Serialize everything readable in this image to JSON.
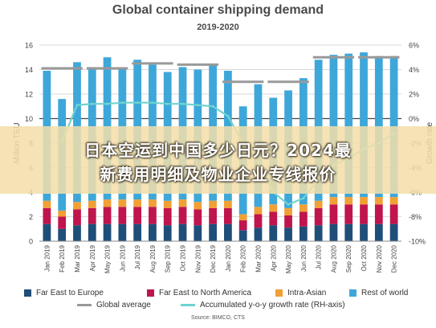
{
  "title": "Global container shipping demand",
  "subtitle": "2019-2020",
  "banner": {
    "line1": "日本空运到中国多少日元？2024最",
    "line2": "新费用明细及物业企业专线报价"
  },
  "source": "Source: BIMCO, CTS",
  "colors": {
    "far_east_europe": "#1f4e79",
    "far_east_north_america": "#c0144c",
    "intra_asian": "#f0a035",
    "rest_of_world": "#3ea7d9",
    "global_average": "#999999",
    "growth_rate": "#6fd3cf"
  },
  "legend": {
    "far_east_europe": "Far East to Europe",
    "far_east_north_america": "Far East to North America",
    "intra_asian": "Intra-Asian",
    "rest_of_world": "Rest of world",
    "global_average": "Global average",
    "growth_rate": "Accumulated y-o-y growth rate (RH-axis)"
  },
  "chart_data": {
    "type": "bar",
    "stacked": true,
    "title": "Global container shipping demand",
    "subtitle": "2019-2020",
    "ylabel": "Million TEU",
    "y2label": "Growth rate",
    "ylim": [
      0,
      16
    ],
    "y2lim": [
      -10,
      6
    ],
    "yticks": [
      0,
      2,
      4,
      6,
      8,
      10,
      12,
      14,
      16
    ],
    "y2ticks": [
      "-10%",
      "-8%",
      "-6%",
      "-4%",
      "-2%",
      "0%",
      "2%",
      "4%",
      "6%"
    ],
    "y2tick_values": [
      -10,
      -8,
      -6,
      -4,
      -2,
      0,
      2,
      4,
      6
    ],
    "grid": true,
    "categories": [
      "Jan 2019",
      "Feb 2019",
      "Mar 2019",
      "Apr 2019",
      "May 2019",
      "Jun 2019",
      "Jul 2019",
      "Aug 2019",
      "Sep 2019",
      "Oct 2019",
      "Nov 2019",
      "Dec 2019",
      "Jan 2020",
      "Feb 2020",
      "Mar 2020",
      "Apr 2020",
      "May 2020",
      "Jun 2020",
      "Jul 2020",
      "Aug 2020",
      "Sep 2020",
      "Oct 2020",
      "Nov 2020",
      "Dec 2020"
    ],
    "series": [
      {
        "name": "Far East to Europe",
        "key": "far_east_europe",
        "values": [
          1.4,
          1.0,
          1.3,
          1.4,
          1.4,
          1.4,
          1.4,
          1.4,
          1.3,
          1.4,
          1.3,
          1.4,
          1.4,
          0.9,
          1.1,
          1.3,
          1.1,
          1.2,
          1.3,
          1.4,
          1.4,
          1.4,
          1.4,
          1.4
        ]
      },
      {
        "name": "Far East to North America",
        "key": "far_east_north_america",
        "values": [
          1.3,
          1.0,
          1.3,
          1.3,
          1.4,
          1.4,
          1.4,
          1.4,
          1.4,
          1.4,
          1.3,
          1.3,
          1.3,
          0.8,
          1.1,
          1.1,
          1.0,
          1.2,
          1.4,
          1.6,
          1.6,
          1.6,
          1.6,
          1.6
        ]
      },
      {
        "name": "Intra-Asian",
        "key": "intra_asian",
        "values": [
          0.6,
          0.5,
          0.6,
          0.6,
          0.6,
          0.6,
          0.6,
          0.6,
          0.6,
          0.6,
          0.6,
          0.6,
          0.6,
          0.5,
          0.6,
          0.6,
          0.6,
          0.6,
          0.6,
          0.6,
          0.6,
          0.6,
          0.6,
          0.6
        ]
      },
      {
        "name": "Rest of world",
        "key": "rest_of_world",
        "values": [
          10.6,
          9.1,
          11.4,
          10.9,
          11.6,
          10.7,
          11.4,
          11.0,
          10.5,
          10.8,
          10.8,
          11.1,
          10.6,
          8.8,
          10.0,
          8.7,
          9.6,
          10.3,
          11.5,
          11.6,
          11.7,
          11.8,
          11.5,
          11.5
        ]
      }
    ],
    "global_average": [
      {
        "period": "2019 Q1",
        "from": 0,
        "to": 2,
        "value": 14.1
      },
      {
        "period": "2019 Q2",
        "from": 3,
        "to": 5,
        "value": 14.1
      },
      {
        "period": "2019 Q3",
        "from": 6,
        "to": 8,
        "value": 14.5
      },
      {
        "period": "2019 Q4",
        "from": 9,
        "to": 11,
        "value": 14.4
      },
      {
        "period": "2020 Q1",
        "from": 12,
        "to": 14,
        "value": 13.0
      },
      {
        "period": "2020 Q2",
        "from": 15,
        "to": 17,
        "value": 13.0
      },
      {
        "period": "2020 Q3",
        "from": 18,
        "to": 20,
        "value": 15.0
      },
      {
        "period": "2020 Q4",
        "from": 21,
        "to": 23,
        "value": 15.0
      }
    ],
    "growth_rate": [
      null,
      -1.9,
      1.1,
      1.2,
      1.2,
      1.3,
      1.3,
      1.3,
      1.2,
      1.2,
      1.1,
      1.0,
      0.2,
      -2.0,
      -3.5,
      -6.0,
      -7.0,
      -6.5,
      -5.0,
      -3.8,
      -3.2,
      -2.5,
      -2.0,
      -1.2
    ]
  }
}
